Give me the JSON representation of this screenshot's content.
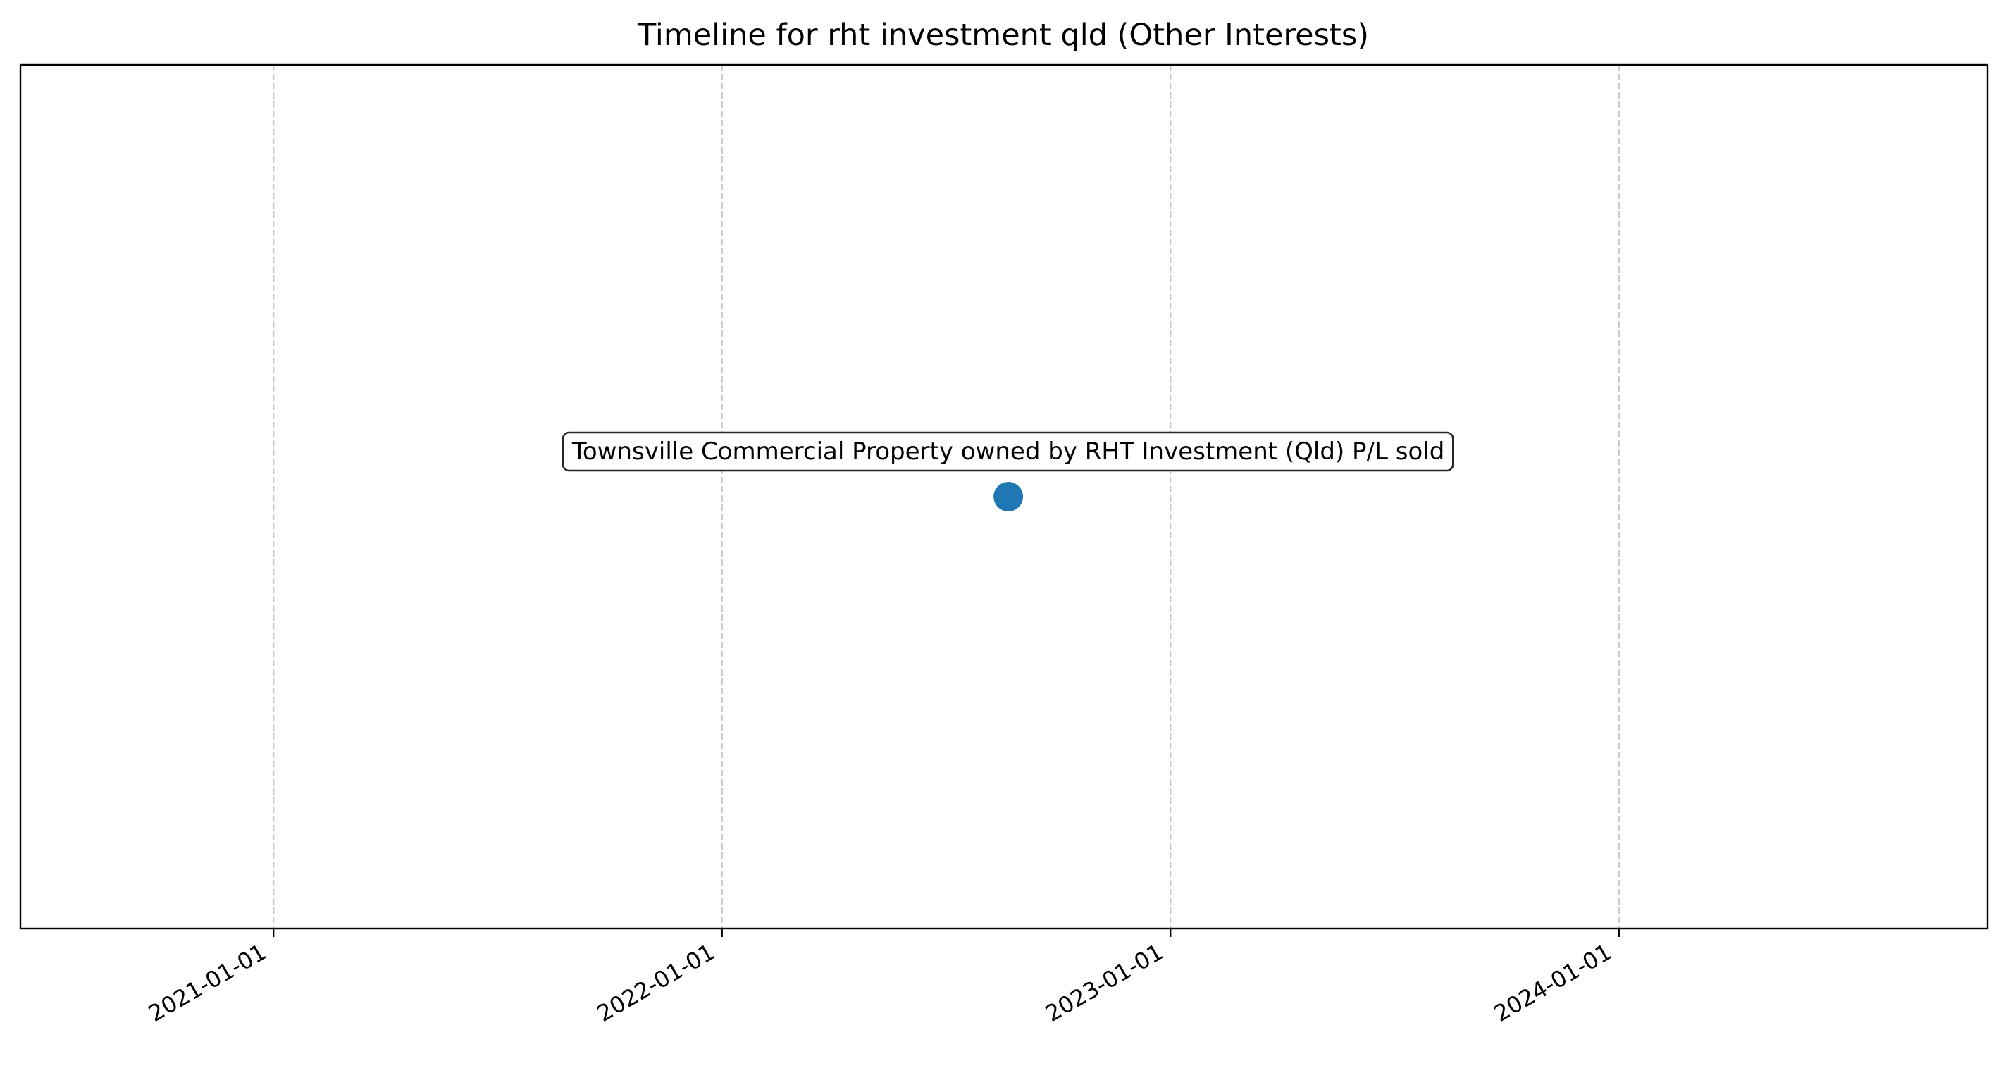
{
  "chart_data": {
    "type": "scatter",
    "title": "Timeline for rht investment qld (Other Interests)",
    "xlabel": "",
    "ylabel": "",
    "x_axis_type": "date",
    "xlim": [
      "2020-06-09",
      "2024-10-27"
    ],
    "ylim": [
      -1,
      1
    ],
    "x_ticks": [
      "2021-01-01",
      "2022-01-01",
      "2023-01-01",
      "2024-01-01"
    ],
    "x_tick_labels": [
      "2021-01-01",
      "2022-01-01",
      "2023-01-01",
      "2024-01-01"
    ],
    "x_tick_rotation_deg": 30,
    "grid": {
      "x": true,
      "y": false,
      "style": "dashed"
    },
    "y_ticks_visible": false,
    "legend": "none",
    "marker_color": "#1f77b4",
    "points": [
      {
        "x": "2022-08-22",
        "y": 0,
        "label": "Townsville Commercial Property owned by RHT Investment (Qld) P/L sold"
      }
    ]
  }
}
